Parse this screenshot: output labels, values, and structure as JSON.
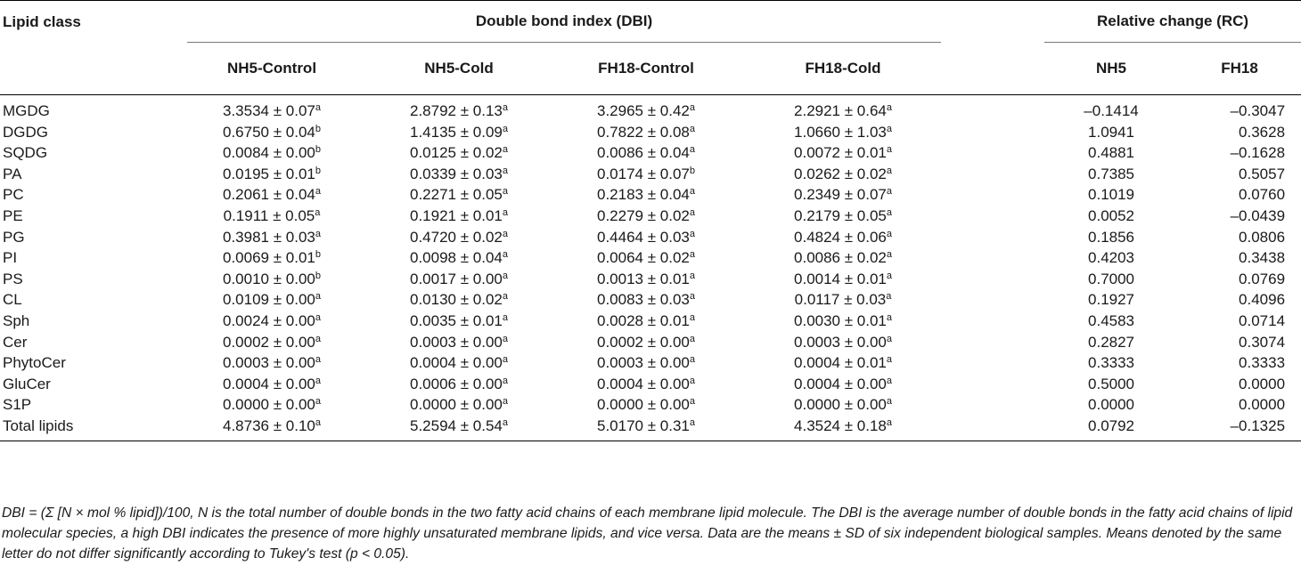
{
  "headers": {
    "lipid_class": "Lipid class",
    "dbi_group": "Double bond index (DBI)",
    "rc_group": "Relative change (RC)",
    "dbi_cols": [
      "NH5-Control",
      "NH5-Cold",
      "FH18-Control",
      "FH18-Cold"
    ],
    "rc_cols": [
      "NH5",
      "FH18"
    ]
  },
  "rows": [
    {
      "name": "MGDG",
      "dbi": [
        {
          "v": "3.3534 ± 0.07",
          "s": "a"
        },
        {
          "v": "2.8792 ± 0.13",
          "s": "a"
        },
        {
          "v": "3.2965 ± 0.42",
          "s": "a"
        },
        {
          "v": "2.2921 ± 0.64",
          "s": "a"
        }
      ],
      "rc": [
        "–0.1414",
        "–0.3047"
      ]
    },
    {
      "name": "DGDG",
      "dbi": [
        {
          "v": "0.6750 ± 0.04",
          "s": "b"
        },
        {
          "v": "1.4135 ± 0.09",
          "s": "a"
        },
        {
          "v": "0.7822 ± 0.08",
          "s": "a"
        },
        {
          "v": "1.0660 ± 1.03",
          "s": "a"
        }
      ],
      "rc": [
        "1.0941",
        "0.3628"
      ]
    },
    {
      "name": "SQDG",
      "dbi": [
        {
          "v": "0.0084 ± 0.00",
          "s": "b"
        },
        {
          "v": "0.0125 ± 0.02",
          "s": "a"
        },
        {
          "v": "0.0086 ± 0.04",
          "s": "a"
        },
        {
          "v": "0.0072 ± 0.01",
          "s": "a"
        }
      ],
      "rc": [
        "0.4881",
        "–0.1628"
      ]
    },
    {
      "name": "PA",
      "dbi": [
        {
          "v": "0.0195 ± 0.01",
          "s": "b"
        },
        {
          "v": "0.0339 ± 0.03",
          "s": "a"
        },
        {
          "v": "0.0174 ± 0.07",
          "s": "b"
        },
        {
          "v": "0.0262 ± 0.02",
          "s": "a"
        }
      ],
      "rc": [
        "0.7385",
        "0.5057"
      ]
    },
    {
      "name": "PC",
      "dbi": [
        {
          "v": "0.2061 ± 0.04",
          "s": "a"
        },
        {
          "v": "0.2271 ± 0.05",
          "s": "a"
        },
        {
          "v": "0.2183 ± 0.04",
          "s": "a"
        },
        {
          "v": "0.2349 ± 0.07",
          "s": "a"
        }
      ],
      "rc": [
        "0.1019",
        "0.0760"
      ]
    },
    {
      "name": "PE",
      "dbi": [
        {
          "v": "0.1911 ± 0.05",
          "s": "a"
        },
        {
          "v": "0.1921 ± 0.01",
          "s": "a"
        },
        {
          "v": "0.2279 ± 0.02",
          "s": "a"
        },
        {
          "v": "0.2179 ± 0.05",
          "s": "a"
        }
      ],
      "rc": [
        "0.0052",
        "–0.0439"
      ]
    },
    {
      "name": "PG",
      "dbi": [
        {
          "v": "0.3981 ± 0.03",
          "s": "a"
        },
        {
          "v": "0.4720 ± 0.02",
          "s": "a"
        },
        {
          "v": "0.4464 ± 0.03",
          "s": "a"
        },
        {
          "v": "0.4824 ± 0.06",
          "s": "a"
        }
      ],
      "rc": [
        "0.1856",
        "0.0806"
      ]
    },
    {
      "name": "PI",
      "dbi": [
        {
          "v": "0.0069 ± 0.01",
          "s": "b"
        },
        {
          "v": "0.0098 ± 0.04",
          "s": "a"
        },
        {
          "v": "0.0064 ± 0.02",
          "s": "a"
        },
        {
          "v": "0.0086 ± 0.02",
          "s": "a"
        }
      ],
      "rc": [
        "0.4203",
        "0.3438"
      ]
    },
    {
      "name": "PS",
      "dbi": [
        {
          "v": "0.0010 ± 0.00",
          "s": "b"
        },
        {
          "v": "0.0017 ± 0.00",
          "s": "a"
        },
        {
          "v": "0.0013 ± 0.01",
          "s": "a"
        },
        {
          "v": "0.0014 ± 0.01",
          "s": "a"
        }
      ],
      "rc": [
        "0.7000",
        "0.0769"
      ]
    },
    {
      "name": "CL",
      "dbi": [
        {
          "v": "0.0109 ± 0.00",
          "s": "a"
        },
        {
          "v": "0.0130 ± 0.02",
          "s": "a"
        },
        {
          "v": "0.0083 ± 0.03",
          "s": "a"
        },
        {
          "v": "0.0117 ± 0.03",
          "s": "a"
        }
      ],
      "rc": [
        "0.1927",
        "0.4096"
      ]
    },
    {
      "name": "Sph",
      "dbi": [
        {
          "v": "0.0024 ± 0.00",
          "s": "a"
        },
        {
          "v": "0.0035 ± 0.01",
          "s": "a"
        },
        {
          "v": "0.0028 ± 0.01",
          "s": "a"
        },
        {
          "v": "0.0030 ± 0.01",
          "s": "a"
        }
      ],
      "rc": [
        "0.4583",
        "0.0714"
      ]
    },
    {
      "name": "Cer",
      "dbi": [
        {
          "v": "0.0002 ± 0.00",
          "s": "a"
        },
        {
          "v": "0.0003 ± 0.00",
          "s": "a"
        },
        {
          "v": "0.0002 ± 0.00",
          "s": "a"
        },
        {
          "v": "0.0003 ± 0.00",
          "s": "a"
        }
      ],
      "rc": [
        "0.2827",
        "0.3074"
      ]
    },
    {
      "name": "PhytoCer",
      "dbi": [
        {
          "v": "0.0003 ± 0.00",
          "s": "a"
        },
        {
          "v": "0.0004 ± 0.00",
          "s": "a"
        },
        {
          "v": "0.0003 ± 0.00",
          "s": "a"
        },
        {
          "v": "0.0004 ± 0.01",
          "s": "a"
        }
      ],
      "rc": [
        "0.3333",
        "0.3333"
      ]
    },
    {
      "name": "GluCer",
      "dbi": [
        {
          "v": "0.0004 ± 0.00",
          "s": "a"
        },
        {
          "v": "0.0006 ± 0.00",
          "s": "a"
        },
        {
          "v": "0.0004 ± 0.00",
          "s": "a"
        },
        {
          "v": "0.0004 ± 0.00",
          "s": "a"
        }
      ],
      "rc": [
        "0.5000",
        "0.0000"
      ]
    },
    {
      "name": "S1P",
      "dbi": [
        {
          "v": "0.0000 ± 0.00",
          "s": "a"
        },
        {
          "v": "0.0000 ± 0.00",
          "s": "a"
        },
        {
          "v": "0.0000 ± 0.00",
          "s": "a"
        },
        {
          "v": "0.0000 ± 0.00",
          "s": "a"
        }
      ],
      "rc": [
        "0.0000",
        "0.0000"
      ]
    },
    {
      "name": "Total lipids",
      "dbi": [
        {
          "v": "4.8736 ± 0.10",
          "s": "a"
        },
        {
          "v": "5.2594 ± 0.54",
          "s": "a"
        },
        {
          "v": "5.0170 ± 0.31",
          "s": "a"
        },
        {
          "v": "4.3524 ± 0.18",
          "s": "a"
        }
      ],
      "rc": [
        "0.0792",
        "–0.1325"
      ]
    }
  ],
  "footnote": "DBI = (Σ [N × mol % lipid])/100, N is the total number of double bonds in the two fatty acid chains of each membrane lipid molecule. The DBI is the average number of double bonds in the fatty acid chains of lipid molecular species, a high DBI indicates the presence of more highly unsaturated membrane lipids, and vice versa. Data are the means ± SD of six independent biological samples. Means denoted by the same letter do not differ significantly according to Tukey's test (p < 0.05)."
}
